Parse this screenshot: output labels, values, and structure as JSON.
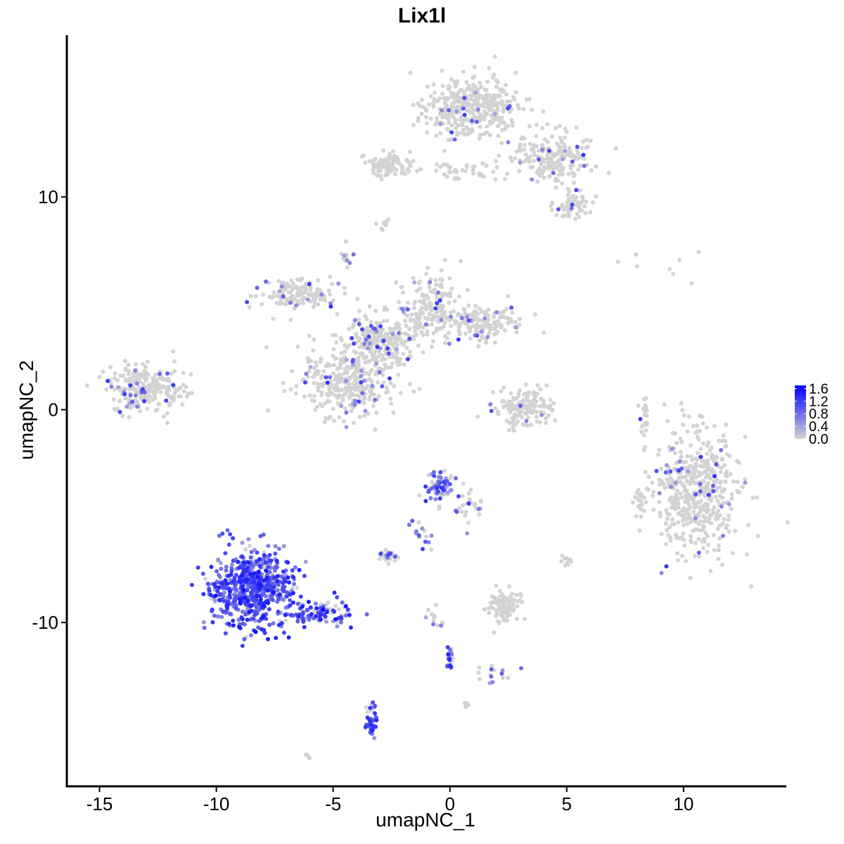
{
  "chart_data": {
    "type": "scatter",
    "title": "Lix1l",
    "xlabel": "umapNC_1",
    "ylabel": "umapNC_2",
    "xlim": [
      -16.4,
      14.4
    ],
    "ylim": [
      -17.7,
      17.6
    ],
    "x_ticks": [
      -15,
      -10,
      -5,
      0,
      5,
      10
    ],
    "x_tick_labels": [
      "-15",
      "-10",
      "-5",
      "0",
      "5",
      "10"
    ],
    "y_ticks": [
      -10,
      0,
      10
    ],
    "y_tick_labels": [
      "-10",
      "0",
      "10"
    ],
    "grid": false,
    "legend": {
      "placement": "right",
      "type": "colorbar",
      "range": [
        0,
        1.7
      ],
      "ticks": [
        0.0,
        0.4,
        0.8,
        1.2,
        1.6
      ],
      "tick_labels": [
        "0.0",
        "0.4",
        "0.8",
        "1.2",
        "1.6"
      ],
      "low_color": "#d3d3d3",
      "high_color": "#0000ff"
    },
    "clusters": [
      {
        "center": [
          0.8,
          14.3
        ],
        "spread": [
          1.3,
          1.0
        ],
        "n": 380,
        "expr": 0.01
      },
      {
        "center": [
          4.5,
          11.8
        ],
        "spread": [
          1.1,
          0.8
        ],
        "n": 200,
        "expr": 0.02
      },
      {
        "center": [
          5.2,
          9.6
        ],
        "spread": [
          0.6,
          0.5
        ],
        "n": 60,
        "expr": 0.03
      },
      {
        "center": [
          -2.6,
          11.5
        ],
        "spread": [
          0.7,
          0.4
        ],
        "n": 100,
        "expr": 0.0
      },
      {
        "center": [
          0.5,
          11.2
        ],
        "spread": [
          1.2,
          0.3
        ],
        "n": 40,
        "expr": 0.0
      },
      {
        "center": [
          -2.8,
          8.7
        ],
        "spread": [
          0.2,
          0.2
        ],
        "n": 8,
        "expr": 0.0
      },
      {
        "center": [
          -3.0,
          3.2
        ],
        "spread": [
          1.0,
          0.8
        ],
        "n": 260,
        "expr": 0.04
      },
      {
        "center": [
          -6.5,
          5.4
        ],
        "spread": [
          1.2,
          0.5
        ],
        "n": 140,
        "expr": 0.03
      },
      {
        "center": [
          -4.3,
          1.2
        ],
        "spread": [
          1.4,
          1.1
        ],
        "n": 300,
        "expr": 0.04
      },
      {
        "center": [
          -0.9,
          4.8
        ],
        "spread": [
          0.9,
          1.0
        ],
        "n": 160,
        "expr": 0.03
      },
      {
        "center": [
          1.4,
          4.1
        ],
        "spread": [
          1.2,
          0.5
        ],
        "n": 150,
        "expr": 0.02
      },
      {
        "center": [
          -4.5,
          7.1
        ],
        "spread": [
          0.2,
          0.3
        ],
        "n": 14,
        "expr": 0.1
      },
      {
        "center": [
          -13.0,
          1.0
        ],
        "spread": [
          1.1,
          0.7
        ],
        "n": 230,
        "expr": 0.06
      },
      {
        "center": [
          3.3,
          0.1
        ],
        "spread": [
          0.9,
          0.6
        ],
        "n": 140,
        "expr": 0.01
      },
      {
        "center": [
          10.6,
          -4.0
        ],
        "spread": [
          1.2,
          1.9
        ],
        "n": 500,
        "expr": 0.01
      },
      {
        "center": [
          8.1,
          -4.3
        ],
        "spread": [
          0.2,
          0.5
        ],
        "n": 20,
        "expr": 0.0
      },
      {
        "center": [
          8.3,
          -0.5
        ],
        "spread": [
          0.15,
          0.7
        ],
        "n": 20,
        "expr": 0.0
      },
      {
        "center": [
          -8.4,
          -8.4
        ],
        "spread": [
          1.2,
          1.2
        ],
        "n": 650,
        "expr": 0.55
      },
      {
        "center": [
          -5.6,
          -9.6
        ],
        "spread": [
          1.0,
          0.35
        ],
        "n": 90,
        "expr": 0.45
      },
      {
        "center": [
          -0.5,
          -3.6
        ],
        "spread": [
          0.4,
          0.5
        ],
        "n": 70,
        "expr": 0.35
      },
      {
        "center": [
          0.8,
          -4.7
        ],
        "spread": [
          0.4,
          0.5
        ],
        "n": 25,
        "expr": 0.1
      },
      {
        "center": [
          -2.6,
          -6.9
        ],
        "spread": [
          0.3,
          0.2
        ],
        "n": 30,
        "expr": 0.15
      },
      {
        "center": [
          2.3,
          -9.2
        ],
        "spread": [
          0.5,
          0.5
        ],
        "n": 90,
        "expr": 0.0
      },
      {
        "center": [
          5.0,
          -7.1
        ],
        "spread": [
          0.2,
          0.2
        ],
        "n": 12,
        "expr": 0.0
      },
      {
        "center": [
          -3.4,
          -14.6
        ],
        "spread": [
          0.2,
          0.5
        ],
        "n": 40,
        "expr": 0.5
      },
      {
        "center": [
          0.0,
          -11.7
        ],
        "spread": [
          0.1,
          0.4
        ],
        "n": 20,
        "expr": 0.45
      },
      {
        "center": [
          2.0,
          -12.4
        ],
        "spread": [
          0.6,
          0.3
        ],
        "n": 15,
        "expr": 0.3
      },
      {
        "center": [
          -1.2,
          -5.8
        ],
        "spread": [
          0.3,
          0.5
        ],
        "n": 15,
        "expr": 0.4
      },
      {
        "center": [
          -0.7,
          -9.8
        ],
        "spread": [
          0.3,
          0.5
        ],
        "n": 12,
        "expr": 0.2
      },
      {
        "center": [
          9.0,
          6.5
        ],
        "spread": [
          1.5,
          0.5
        ],
        "n": 8,
        "expr": 0.0
      },
      {
        "center": [
          0.7,
          -13.9
        ],
        "spread": [
          0.1,
          0.1
        ],
        "n": 5,
        "expr": 0.0
      },
      {
        "center": [
          -6.0,
          -16.3
        ],
        "spread": [
          0.1,
          0.1
        ],
        "n": 4,
        "expr": 0.0
      }
    ]
  }
}
